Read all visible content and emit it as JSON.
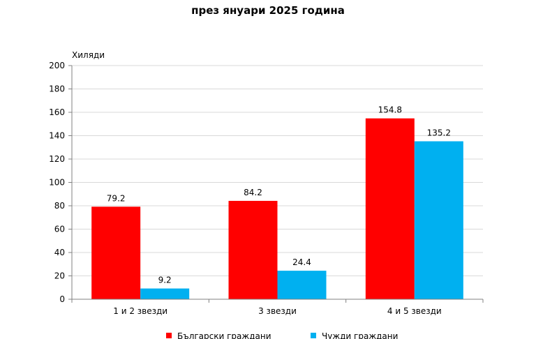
{
  "chart_data": {
    "type": "bar",
    "title": "през януари 2025 година",
    "ylabel": "Хиляди",
    "xlabel": "",
    "categories": [
      "1 и 2 звезди",
      "3 звезди",
      "4 и 5 звезди"
    ],
    "series": [
      {
        "name": "Български граждани",
        "values": [
          79.2,
          84.2,
          154.8
        ],
        "color": "#ff0000",
        "labels": [
          "79.2",
          "84.2",
          "154.8"
        ]
      },
      {
        "name": "Чужди граждани",
        "values": [
          9.2,
          24.4,
          135.2
        ],
        "color": "#00b0f0",
        "labels": [
          "9.2",
          "24.4",
          "135.2"
        ]
      }
    ],
    "ylim": [
      0,
      200
    ],
    "yticks": [
      0,
      20,
      40,
      60,
      80,
      100,
      120,
      140,
      160,
      180,
      200
    ],
    "ytick_labels": [
      "0",
      "20",
      "40",
      "60",
      "80",
      "100",
      "120",
      "140",
      "160",
      "180",
      "200"
    ],
    "grid": true,
    "legend_position": "bottom"
  }
}
